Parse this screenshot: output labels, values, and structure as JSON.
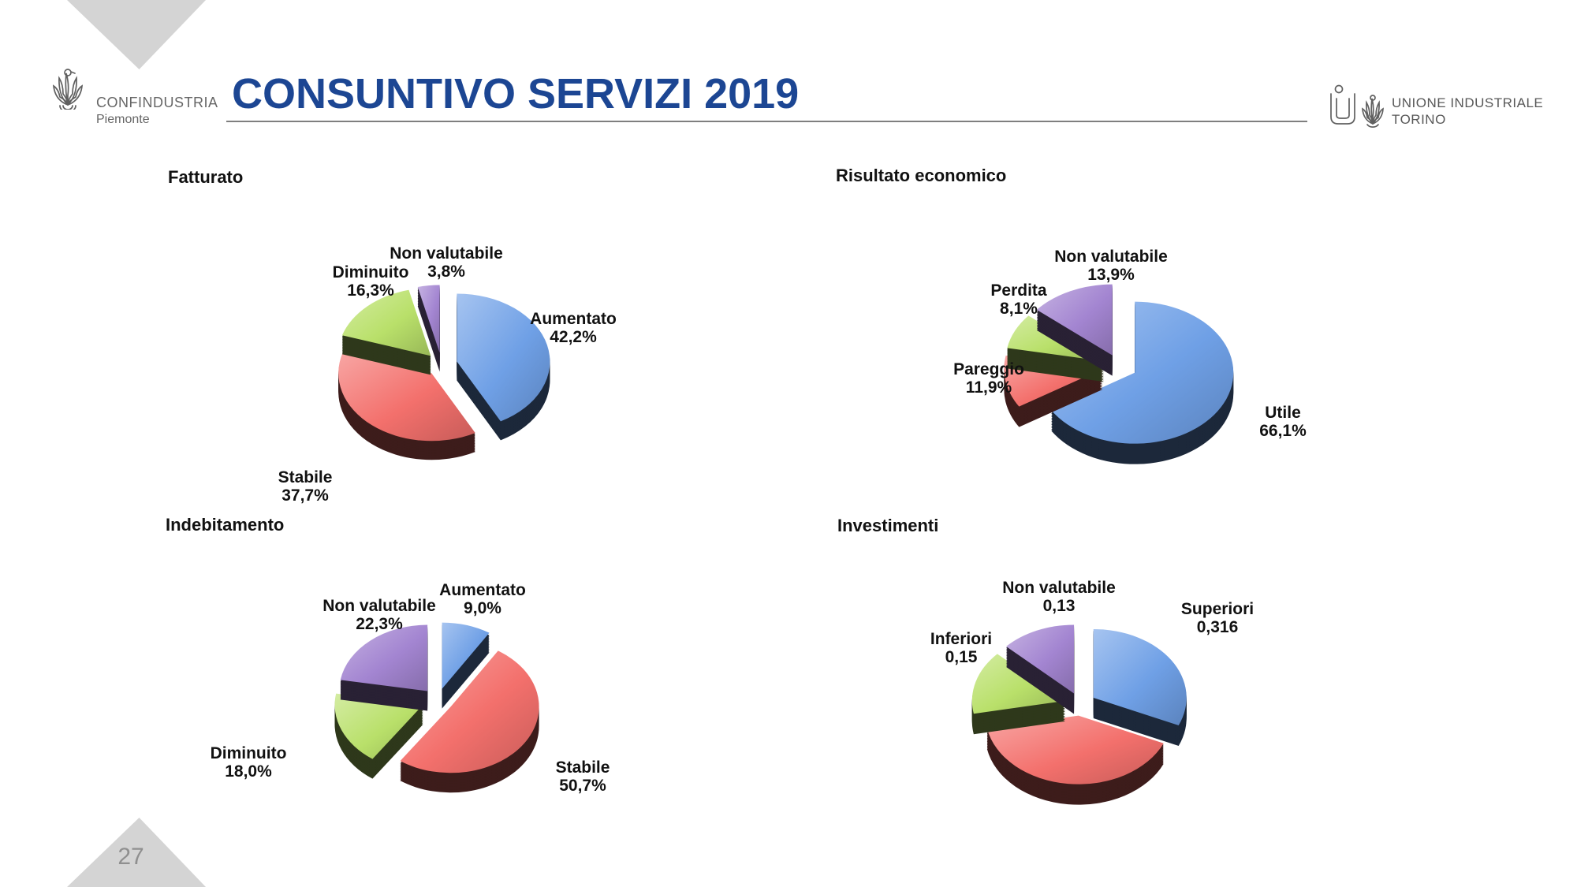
{
  "slide": {
    "title": "CONSUNTIVO SERVIZI 2019",
    "page_number": "27",
    "logo_left": {
      "name": "CONFINDUSTRIA",
      "region": "Piemonte"
    },
    "logo_right": {
      "line1": "UNIONE INDUSTRIALE",
      "line2": "TORINO"
    }
  },
  "colors": {
    "title_blue": "#1C4693",
    "slice_blue": "#6FA0E6",
    "slice_red": "#F3706C",
    "slice_green": "#B9E06A",
    "slice_purple": "#A385D1",
    "triangle_gray": "#D4D4D4",
    "page_number_gray": "#8F8F8F",
    "label_black": "#111111"
  },
  "chart_data": [
    {
      "type": "pie",
      "style": "3d-exploded",
      "title": "Fatturato",
      "labels_format": "percent",
      "slices": [
        {
          "label": "Aumentato",
          "value": 42.2,
          "value_text": "42,2%",
          "color_key": "slice_blue"
        },
        {
          "label": "Stabile",
          "value": 37.7,
          "value_text": "37,7%",
          "color_key": "slice_red"
        },
        {
          "label": "Diminuito",
          "value": 16.3,
          "value_text": "16,3%",
          "color_key": "slice_green"
        },
        {
          "label": "Non valutabile",
          "value": 3.8,
          "value_text": "3,8%",
          "color_key": "slice_purple"
        }
      ]
    },
    {
      "type": "pie",
      "style": "3d-exploded",
      "title": "Risultato economico",
      "labels_format": "percent",
      "slices": [
        {
          "label": "Utile",
          "value": 66.1,
          "value_text": "66,1%",
          "color_key": "slice_blue"
        },
        {
          "label": "Pareggio",
          "value": 11.9,
          "value_text": "11,9%",
          "color_key": "slice_red"
        },
        {
          "label": "Perdita",
          "value": 8.1,
          "value_text": "8,1%",
          "color_key": "slice_green"
        },
        {
          "label": "Non valutabile",
          "value": 13.9,
          "value_text": "13,9%",
          "color_key": "slice_purple"
        }
      ]
    },
    {
      "type": "pie",
      "style": "3d-exploded",
      "title": "Indebitamento",
      "labels_format": "percent",
      "slices": [
        {
          "label": "Aumentato",
          "value": 9.0,
          "value_text": "9,0%",
          "color_key": "slice_blue"
        },
        {
          "label": "Stabile",
          "value": 50.7,
          "value_text": "50,7%",
          "color_key": "slice_red"
        },
        {
          "label": "Diminuito",
          "value": 18.0,
          "value_text": "18,0%",
          "color_key": "slice_green"
        },
        {
          "label": "Non valutabile",
          "value": 22.3,
          "value_text": "22,3%",
          "color_key": "slice_purple"
        }
      ]
    },
    {
      "type": "pie",
      "style": "3d-exploded",
      "title": "Investimenti",
      "labels_format": "share",
      "slices": [
        {
          "label": "Superiori",
          "value": 0.316,
          "value_text": "0,316",
          "color_key": "slice_blue"
        },
        {
          "label": "",
          "value": 0.404,
          "value_text": "",
          "color_key": "slice_red",
          "estimated": true
        },
        {
          "label": "Inferiori",
          "value": 0.15,
          "value_text": "0,15",
          "color_key": "slice_green"
        },
        {
          "label": "Non valutabile",
          "value": 0.13,
          "value_text": "0,13",
          "color_key": "slice_purple"
        }
      ]
    }
  ]
}
